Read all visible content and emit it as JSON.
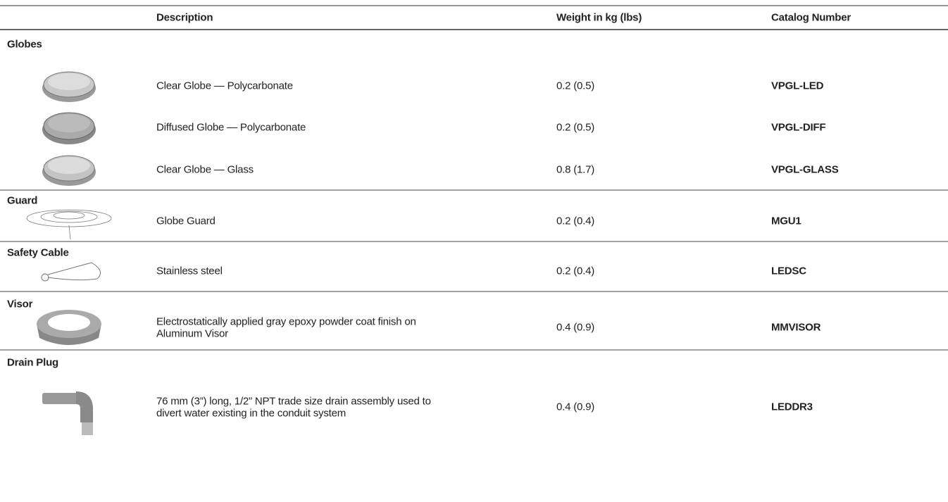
{
  "header": {
    "columns": [
      "Description",
      "Weight in kg (lbs)",
      "Catalog Number"
    ]
  },
  "groups": [
    {
      "name": "Globes",
      "items": [
        {
          "description": [
            "Clear Globe — Polycarbonate"
          ],
          "weight": "0.2 (0.5)",
          "catalog": "VPGL-LED"
        },
        {
          "description": [
            "Diffused Globe — Polycarbonate"
          ],
          "weight": "0.2 (0.5)",
          "catalog": "VPGL-DIFF"
        },
        {
          "description": [
            "Clear Globe — Glass"
          ],
          "weight": "0.8 (1.7)",
          "catalog": "VPGL-GLASS"
        }
      ]
    },
    {
      "name": "Guard",
      "items": [
        {
          "description": [
            "Globe Guard"
          ],
          "weight": "0.2 (0.4)",
          "catalog": "MGU1"
        }
      ]
    },
    {
      "name": "Safety Cable",
      "items": [
        {
          "description": [
            "Stainless steel"
          ],
          "weight": "0.2 (0.4)",
          "catalog": "LEDSC"
        }
      ]
    },
    {
      "name": "Visor",
      "items": [
        {
          "description": [
            "Electrostatically applied gray epoxy powder coat finish on",
            "Aluminum Visor"
          ],
          "weight": "0.4 (0.9)",
          "catalog": "MMVISOR"
        }
      ]
    },
    {
      "name": "Drain Plug",
      "items": [
        {
          "description": [
            "76 mm (3”) long, 1/2” NPT trade size drain assembly used to",
            "divert water existing in the conduit system"
          ],
          "weight": "0.4 (0.9)",
          "catalog": "LEDDR3"
        }
      ]
    }
  ]
}
